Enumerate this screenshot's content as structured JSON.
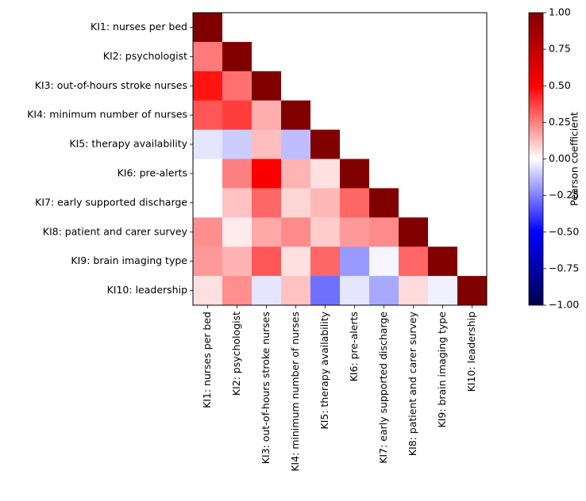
{
  "chart_data": {
    "type": "heatmap",
    "title": "",
    "xlabel": "",
    "ylabel": "",
    "labels": [
      "KI1: nurses per bed",
      "KI2: psychologist",
      "KI3: out-of-hours stroke nurses",
      "KI4: minimum number of nurses",
      "KI5: therapy availability",
      "KI6: pre-alerts",
      "KI7: early supported discharge",
      "KI8: patient and carer survey",
      "KI9: brain imaging type",
      "KI10: leadership"
    ],
    "matrix": [
      [
        1.0,
        0,
        0,
        0,
        0,
        0,
        0,
        0,
        0,
        0
      ],
      [
        0.26,
        1.0,
        0,
        0,
        0,
        0,
        0,
        0,
        0,
        0
      ],
      [
        0.46,
        0.28,
        1.0,
        0,
        0,
        0,
        0,
        0,
        0,
        0
      ],
      [
        0.33,
        0.38,
        0.16,
        1.0,
        0,
        0,
        0,
        0,
        0,
        0
      ],
      [
        -0.05,
        -0.1,
        0.13,
        -0.13,
        1.0,
        0,
        0,
        0,
        0,
        0
      ],
      [
        0.0,
        0.25,
        0.52,
        0.15,
        0.06,
        1.0,
        0,
        0,
        0,
        0
      ],
      [
        0.0,
        0.12,
        0.3,
        0.08,
        0.14,
        0.3,
        1.0,
        0,
        0,
        0
      ],
      [
        0.22,
        0.04,
        0.17,
        0.23,
        0.1,
        0.2,
        0.23,
        1.0,
        0,
        0
      ],
      [
        0.2,
        0.15,
        0.33,
        0.06,
        0.3,
        -0.2,
        -0.02,
        0.3,
        1.0,
        0
      ],
      [
        0.06,
        0.22,
        -0.05,
        0.12,
        -0.28,
        -0.05,
        -0.17,
        0.07,
        -0.03,
        1.0
      ]
    ],
    "vmin": -1.0,
    "vmax": 1.0,
    "colormap": "seismic",
    "colorbar": {
      "label": "Pearson coefficient",
      "ticks": [
        "1.00",
        "0.75",
        "0.50",
        "0.25",
        "0.00",
        "−0.25",
        "−0.50",
        "−0.75",
        "−1.00"
      ],
      "tick_values": [
        1.0,
        0.75,
        0.5,
        0.25,
        0.0,
        -0.25,
        -0.5,
        -0.75,
        -1.0
      ]
    },
    "grid": false
  }
}
